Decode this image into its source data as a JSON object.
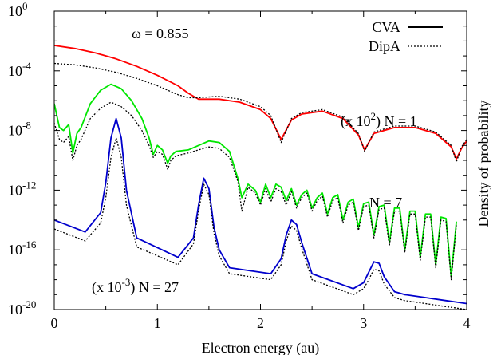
{
  "chart_data": {
    "type": "line",
    "xlabel": "Electron energy (au)",
    "ylabel": "Density of probability",
    "xlim": [
      0,
      4
    ],
    "ylim_log10": [
      -20,
      0
    ],
    "y_scale": "log",
    "x_ticks": [
      "0",
      "1",
      "2",
      "3",
      "4"
    ],
    "y_ticks": [
      {
        "base": "10",
        "exp": "0"
      },
      {
        "base": "10",
        "exp": "-4"
      },
      {
        "base": "10",
        "exp": "-8"
      },
      {
        "base": "10",
        "exp": "-12"
      },
      {
        "base": "10",
        "exp": "-16"
      },
      {
        "base": "10",
        "exp": "-20"
      }
    ],
    "legend": {
      "placement": "top-right",
      "entries": [
        {
          "label": "CVA",
          "style": "solid"
        },
        {
          "label": "DipA",
          "style": "dotted"
        }
      ]
    },
    "annotations": {
      "omega": "ω = 0.855",
      "n1": {
        "prefix": "(x 10",
        "exp": "2",
        "suffix": ") N = 1"
      },
      "n7": "N = 7",
      "n27": {
        "prefix": "(x 10",
        "exp": "-3",
        "suffix": ") N = 27"
      }
    },
    "series": [
      {
        "group": "N = 1",
        "method": "CVA",
        "color": "#ff0000",
        "style": "solid",
        "x": [
          0.0,
          0.2,
          0.4,
          0.6,
          0.8,
          1.0,
          1.2,
          1.3,
          1.4,
          1.6,
          1.8,
          2.0,
          2.1,
          2.2,
          2.3,
          2.4,
          2.6,
          2.8,
          2.95,
          3.01,
          3.1,
          3.3,
          3.5,
          3.7,
          3.85,
          3.9,
          3.95,
          4.0
        ],
        "log10y": [
          -2.3,
          -2.5,
          -2.8,
          -3.2,
          -3.7,
          -4.3,
          -5.0,
          -5.5,
          -5.9,
          -5.9,
          -6.1,
          -6.6,
          -7.2,
          -8.6,
          -7.3,
          -6.9,
          -6.7,
          -7.2,
          -8.3,
          -9.3,
          -8.2,
          -7.8,
          -7.8,
          -8.2,
          -9.1,
          -9.9,
          -9.2,
          -8.7
        ]
      },
      {
        "group": "N = 1",
        "method": "DipA",
        "color": "#000000",
        "style": "dotted",
        "x": [
          0.0,
          0.2,
          0.4,
          0.6,
          0.8,
          1.0,
          1.2,
          1.3,
          1.4,
          1.6,
          1.8,
          2.0,
          2.1,
          2.2,
          2.3,
          2.4,
          2.6,
          2.8,
          2.95,
          3.01,
          3.1,
          3.3,
          3.5,
          3.7,
          3.85,
          3.9,
          3.95,
          4.0
        ],
        "log10y": [
          -3.5,
          -3.6,
          -3.8,
          -4.1,
          -4.5,
          -5.0,
          -5.6,
          -5.8,
          -5.8,
          -5.7,
          -5.9,
          -6.4,
          -7.0,
          -8.8,
          -7.2,
          -6.8,
          -6.6,
          -7.1,
          -8.2,
          -9.4,
          -8.1,
          -7.7,
          -7.7,
          -8.1,
          -9.0,
          -10.1,
          -9.1,
          -8.6
        ]
      },
      {
        "group": "N = 7",
        "method": "CVA",
        "color": "#00e600",
        "style": "solid",
        "x": [
          0.0,
          0.05,
          0.09,
          0.14,
          0.18,
          0.22,
          0.26,
          0.35,
          0.45,
          0.55,
          0.65,
          0.75,
          0.85,
          0.92,
          0.96,
          1.0,
          1.05,
          1.1,
          1.13,
          1.18,
          1.3,
          1.4,
          1.5,
          1.6,
          1.7,
          1.78,
          1.82,
          1.88,
          1.95,
          2.0,
          2.05,
          2.1,
          2.15,
          2.2,
          2.25,
          2.3,
          2.35,
          2.4,
          2.45,
          2.5,
          2.55,
          2.6,
          2.65,
          2.7,
          2.75,
          2.8,
          2.85,
          2.9,
          2.95,
          3.0,
          3.05,
          3.1,
          3.15,
          3.2,
          3.25,
          3.3,
          3.35,
          3.4,
          3.45,
          3.5,
          3.55,
          3.6,
          3.65,
          3.7,
          3.75,
          3.8,
          3.85,
          3.9
        ],
        "log10y": [
          -6.2,
          -7.8,
          -8.0,
          -7.6,
          -9.5,
          -8.2,
          -7.8,
          -6.2,
          -5.3,
          -4.9,
          -5.2,
          -6.0,
          -7.2,
          -8.5,
          -9.6,
          -9.0,
          -9.3,
          -10.2,
          -9.7,
          -9.4,
          -9.3,
          -9.0,
          -8.7,
          -8.8,
          -9.4,
          -11.2,
          -12.5,
          -11.6,
          -12.0,
          -12.8,
          -11.6,
          -12.5,
          -11.6,
          -11.8,
          -12.7,
          -11.9,
          -13.0,
          -12.3,
          -12.0,
          -13.2,
          -12.5,
          -12.2,
          -13.6,
          -12.5,
          -12.3,
          -14.0,
          -12.8,
          -12.6,
          -14.5,
          -12.9,
          -12.8,
          -15.0,
          -13.1,
          -13.0,
          -15.5,
          -13.2,
          -13.2,
          -16.0,
          -13.4,
          -13.4,
          -16.5,
          -13.6,
          -13.6,
          -17.0,
          -13.8,
          -13.9,
          -17.8,
          -14.1
        ]
      },
      {
        "group": "N = 7",
        "method": "DipA",
        "color": "#000000",
        "style": "dotted",
        "x": [
          0.0,
          0.05,
          0.09,
          0.14,
          0.18,
          0.22,
          0.26,
          0.35,
          0.45,
          0.55,
          0.65,
          0.75,
          0.85,
          0.92,
          0.96,
          1.0,
          1.05,
          1.1,
          1.13,
          1.18,
          1.3,
          1.4,
          1.5,
          1.6,
          1.7,
          1.78,
          1.82,
          1.88,
          1.95,
          2.0,
          2.05,
          2.1,
          2.15,
          2.2,
          2.25,
          2.3,
          2.35,
          2.4,
          2.45,
          2.5,
          2.55,
          2.6,
          2.65,
          2.7,
          2.75,
          2.8,
          2.85,
          2.9,
          2.95,
          3.0,
          3.05,
          3.1,
          3.15,
          3.2,
          3.25,
          3.3,
          3.35,
          3.4,
          3.45,
          3.5,
          3.55,
          3.6,
          3.65,
          3.7,
          3.75,
          3.8,
          3.85,
          3.9
        ],
        "log10y": [
          -7.5,
          -8.6,
          -8.8,
          -8.4,
          -10.0,
          -9.0,
          -8.6,
          -7.2,
          -6.5,
          -6.1,
          -6.4,
          -7.0,
          -8.0,
          -9.0,
          -9.8,
          -9.4,
          -9.6,
          -10.6,
          -10.0,
          -9.7,
          -9.5,
          -9.3,
          -9.1,
          -9.2,
          -9.8,
          -11.4,
          -13.4,
          -11.8,
          -12.2,
          -13.0,
          -11.9,
          -12.8,
          -11.9,
          -12.1,
          -13.0,
          -12.1,
          -13.2,
          -12.5,
          -12.2,
          -13.4,
          -12.7,
          -12.4,
          -13.8,
          -12.7,
          -12.5,
          -14.2,
          -13.0,
          -12.8,
          -14.7,
          -13.1,
          -13.0,
          -15.2,
          -13.3,
          -13.2,
          -15.7,
          -13.4,
          -13.4,
          -16.2,
          -13.6,
          -13.6,
          -16.7,
          -13.8,
          -13.8,
          -17.2,
          -14.0,
          -14.1,
          -18.0,
          -14.3
        ]
      },
      {
        "group": "N = 27",
        "method": "CVA",
        "color": "#0000cc",
        "style": "solid",
        "x": [
          0.0,
          0.3,
          0.45,
          0.5,
          0.55,
          0.6,
          0.65,
          0.7,
          0.8,
          1.2,
          1.35,
          1.4,
          1.45,
          1.5,
          1.55,
          1.6,
          1.7,
          2.1,
          2.2,
          2.25,
          2.3,
          2.35,
          2.4,
          2.5,
          2.9,
          3.0,
          3.05,
          3.1,
          3.15,
          3.2,
          3.3,
          3.4,
          3.6,
          3.8,
          3.9,
          4.0
        ],
        "log10y": [
          -14.0,
          -14.8,
          -13.5,
          -11.5,
          -8.5,
          -7.2,
          -8.5,
          -12.0,
          -15.2,
          -16.5,
          -15.2,
          -13.0,
          -11.2,
          -11.9,
          -14.5,
          -16.0,
          -17.2,
          -17.6,
          -16.6,
          -15.0,
          -14.0,
          -14.3,
          -15.5,
          -17.6,
          -18.6,
          -18.2,
          -17.5,
          -16.8,
          -16.9,
          -17.8,
          -18.8,
          -19.0,
          -19.2,
          -19.4,
          -19.5,
          -19.6
        ]
      },
      {
        "group": "N = 27",
        "method": "DipA",
        "color": "#000000",
        "style": "dotted",
        "x": [
          0.0,
          0.3,
          0.45,
          0.5,
          0.55,
          0.6,
          0.65,
          0.7,
          0.8,
          1.2,
          1.35,
          1.4,
          1.45,
          1.5,
          1.55,
          1.6,
          1.7,
          2.1,
          2.2,
          2.25,
          2.3,
          2.35,
          2.4,
          2.5,
          2.9,
          3.0,
          3.05,
          3.1,
          3.15,
          3.2,
          3.3,
          3.4,
          3.6,
          3.8,
          3.9,
          4.0
        ],
        "log10y": [
          -14.6,
          -15.4,
          -14.2,
          -12.5,
          -9.8,
          -8.5,
          -9.8,
          -13.0,
          -15.8,
          -17.0,
          -15.6,
          -13.4,
          -11.6,
          -12.3,
          -14.9,
          -16.4,
          -17.6,
          -18.0,
          -17.0,
          -15.4,
          -14.4,
          -14.7,
          -15.9,
          -18.0,
          -19.0,
          -18.6,
          -18.0,
          -17.3,
          -17.4,
          -18.3,
          -19.2,
          -19.4,
          -19.6,
          -19.8,
          -19.9,
          -20.0
        ]
      }
    ]
  }
}
